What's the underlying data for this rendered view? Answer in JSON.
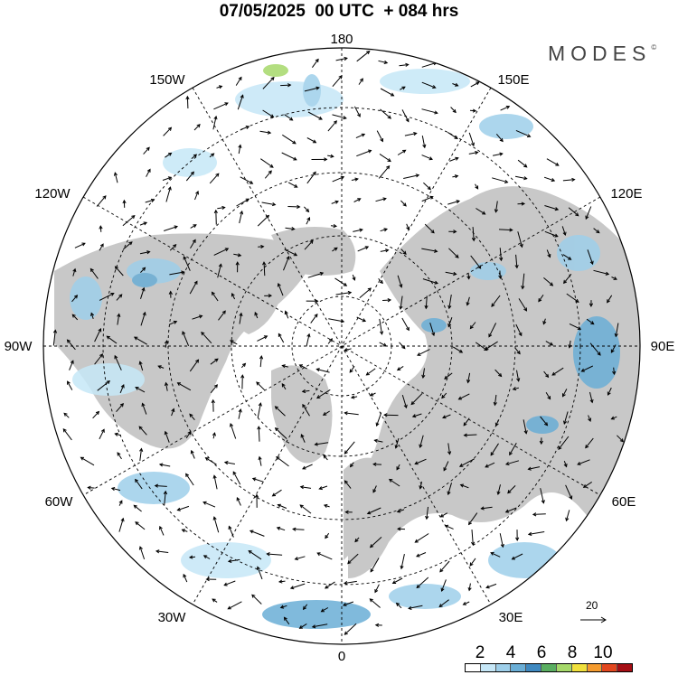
{
  "title": "07/05/2025  00 UTC  + 084 hrs",
  "brand": {
    "name": "MODES",
    "mark": "©"
  },
  "map": {
    "projection": "north polar stereographic",
    "center": "North Pole",
    "longitude_labels": [
      "180",
      "150E",
      "120E",
      "90E",
      "60E",
      "30E",
      "0",
      "30W",
      "60W",
      "90W",
      "120W",
      "150W"
    ],
    "land_color": "#c8c8c8",
    "ocean_color": "#ffffff",
    "graticule_style": "dashed"
  },
  "legend": {
    "tick_labels": [
      "2",
      "4",
      "6",
      "8",
      "10"
    ],
    "colors": [
      "#ffffff",
      "#c6e7f7",
      "#9ecfea",
      "#6aaed6",
      "#3f89c0",
      "#5aae61",
      "#a6d96a",
      "#f0e03c",
      "#f49b2f",
      "#e2471f",
      "#a50f15"
    ]
  },
  "reference_vector": {
    "label": "20"
  },
  "shading_colors": {
    "light": "#c6e7f7",
    "mid": "#9ecfea",
    "dark": "#6aaed6",
    "darker": "#3f89c0",
    "green": "#a6d96a"
  }
}
